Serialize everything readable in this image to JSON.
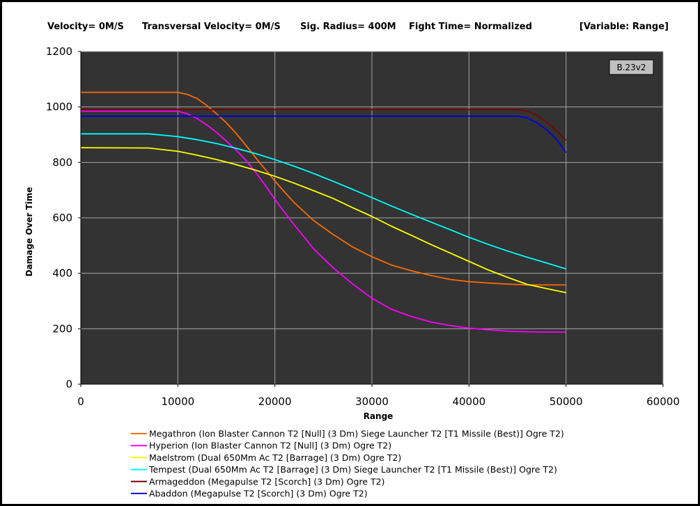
{
  "header": {
    "velocity": "Velocity= 0M/S",
    "transversal": "Transversal Velocity= 0M/S",
    "sig_radius": "Sig. Radius= 400M",
    "fight_time": "Fight Time= Normalized",
    "variable": "[Variable: Range]"
  },
  "badge": "B.23v2",
  "colors": {
    "plot_bg": "#333333",
    "grid": "#a6a6a6"
  },
  "chart_data": {
    "type": "line",
    "xlabel": "Range",
    "ylabel": "Damage Over Time",
    "xlim": [
      0,
      60000
    ],
    "ylim": [
      0,
      1200
    ],
    "xticks": [
      0,
      10000,
      20000,
      30000,
      40000,
      50000,
      60000
    ],
    "yticks": [
      0,
      200,
      400,
      600,
      800,
      1000,
      1200
    ],
    "grid": true,
    "legend_position": "bottom",
    "series": [
      {
        "name": "Megathron (Ion Blaster Cannon T2 [Null] (3 Dm) Siege Launcher T2 [T1 Missile (Best)] Ogre T2)",
        "color": "#ff6a00",
        "x": [
          0,
          10000,
          11000,
          12000,
          13000,
          14000,
          15000,
          16000,
          17000,
          18000,
          19000,
          20000,
          21000,
          22000,
          24000,
          26000,
          28000,
          30000,
          32000,
          34000,
          36000,
          38000,
          40000,
          42000,
          44000,
          46000,
          48000,
          50000
        ],
        "y": [
          1053,
          1053,
          1045,
          1030,
          1005,
          975,
          943,
          905,
          862,
          818,
          775,
          733,
          693,
          655,
          590,
          540,
          495,
          460,
          430,
          410,
          393,
          378,
          370,
          365,
          361,
          358,
          358,
          358
        ]
      },
      {
        "name": "Hyperion (Ion Blaster Cannon T2 [Null] (3 Dm) Ogre T2)",
        "color": "#ff00ff",
        "x": [
          0,
          10000,
          11000,
          12000,
          13000,
          14000,
          15000,
          16000,
          17000,
          18000,
          19000,
          20000,
          21000,
          22000,
          24000,
          26000,
          28000,
          30000,
          32000,
          34000,
          36000,
          38000,
          40000,
          42000,
          44000,
          46000,
          48000,
          50000
        ],
        "y": [
          985,
          985,
          975,
          958,
          935,
          908,
          877,
          845,
          808,
          765,
          718,
          667,
          620,
          575,
          488,
          420,
          362,
          310,
          270,
          245,
          225,
          212,
          202,
          196,
          191,
          189,
          188,
          188
        ]
      },
      {
        "name": "Maelstrom (Dual 650Mm Ac T2 [Barrage] (3 Dm) Ogre T2)",
        "color": "#ffff00",
        "x": [
          0,
          7000,
          10000,
          12000,
          14000,
          16000,
          18000,
          20000,
          22000,
          24000,
          26000,
          28000,
          30000,
          32000,
          34000,
          36000,
          38000,
          40000,
          42000,
          44000,
          46000,
          48000,
          50000
        ],
        "y": [
          853,
          852,
          840,
          826,
          810,
          792,
          772,
          750,
          725,
          698,
          670,
          637,
          605,
          570,
          538,
          505,
          474,
          443,
          412,
          385,
          360,
          345,
          330
        ]
      },
      {
        "name": "Tempest (Dual 650Mm Ac T2 [Barrage] (3 Dm) Siege Launcher T2 [T1 Missile (Best)] Ogre T2)",
        "color": "#00ffff",
        "x": [
          0,
          7000,
          10000,
          12000,
          14000,
          16000,
          18000,
          20000,
          22000,
          24000,
          26000,
          28000,
          30000,
          32000,
          34000,
          36000,
          38000,
          40000,
          42000,
          44000,
          46000,
          48000,
          50000
        ],
        "y": [
          903,
          903,
          893,
          882,
          868,
          851,
          832,
          810,
          786,
          760,
          732,
          703,
          673,
          643,
          614,
          586,
          558,
          530,
          504,
          480,
          458,
          437,
          416
        ]
      },
      {
        "name": "Armageddon (Megapulse T2 [Scorch] (3 Dm) Ogre T2)",
        "color": "#800000",
        "x": [
          0,
          45000,
          46000,
          47000,
          48000,
          49000,
          50000
        ],
        "y": [
          990,
          990,
          985,
          970,
          945,
          915,
          880
        ]
      },
      {
        "name": "Abaddon (Megapulse T2 [Scorch] (3 Dm) Ogre T2)",
        "color": "#0000e0",
        "x": [
          0,
          45000,
          46000,
          47000,
          48000,
          49000,
          50000
        ],
        "y": [
          967,
          967,
          960,
          943,
          918,
          885,
          835
        ]
      }
    ]
  }
}
